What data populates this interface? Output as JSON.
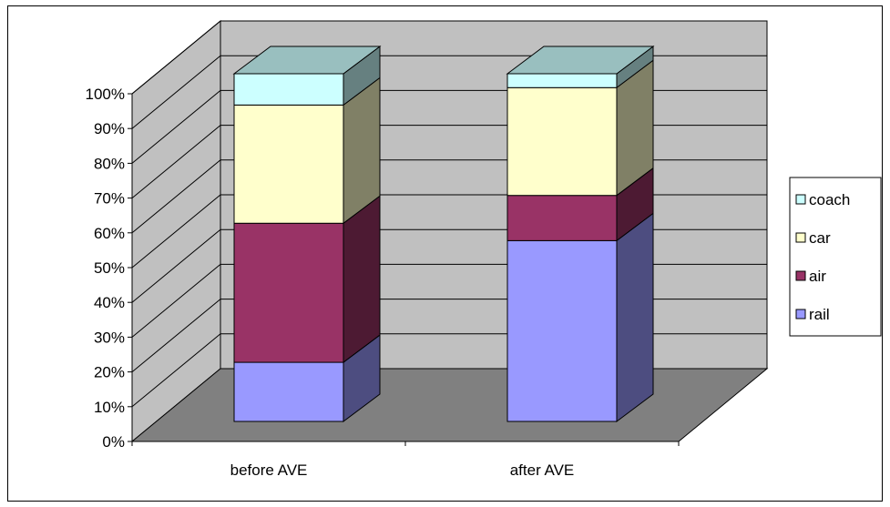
{
  "chart_data": {
    "type": "bar",
    "stacked": true,
    "percent_stacked": true,
    "three_d": true,
    "categories": [
      "before AVE",
      "after AVE"
    ],
    "series": [
      {
        "name": "rail",
        "values": [
          17,
          52
        ],
        "color": "#9999ff"
      },
      {
        "name": "air",
        "values": [
          40,
          13
        ],
        "color": "#993366"
      },
      {
        "name": "car",
        "values": [
          34,
          31
        ],
        "color": "#ffffcc"
      },
      {
        "name": "coach",
        "values": [
          9,
          4
        ],
        "color": "#ccffff"
      }
    ],
    "ylim": [
      0,
      100
    ],
    "yticks": [
      "0%",
      "10%",
      "20%",
      "30%",
      "40%",
      "50%",
      "60%",
      "70%",
      "80%",
      "90%",
      "100%"
    ],
    "legend": [
      "coach",
      "car",
      "air",
      "rail"
    ],
    "legend_position": "right",
    "grid": true,
    "wall_color": "#c0c0c0",
    "floor_color": "#808080"
  }
}
